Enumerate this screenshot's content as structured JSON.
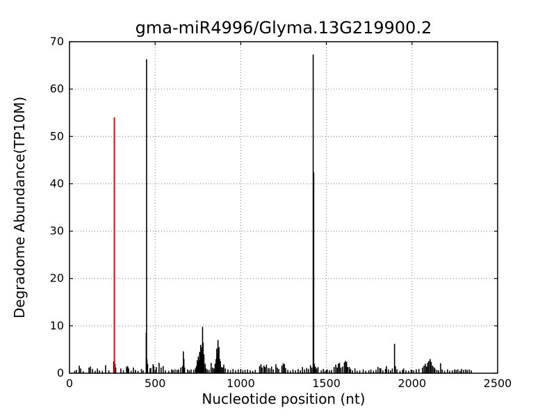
{
  "chart_data": {
    "type": "bar",
    "title": "gma-miR4996/Glyma.13G219900.2",
    "xlabel": "Nucleotide position (nt)",
    "ylabel": "Degradome Abundance(TP10M)",
    "xlim": [
      0,
      2500
    ],
    "ylim": [
      0,
      70
    ],
    "xticks": [
      0,
      500,
      1000,
      1500,
      2000,
      2500
    ],
    "yticks": [
      0,
      10,
      20,
      30,
      40,
      50,
      60,
      70
    ],
    "grid": "dotted",
    "legend": "none",
    "colors": {
      "bar": "#000000",
      "highlight": "#ee0000",
      "axis": "#000000",
      "grid": "#777777",
      "background": "#ffffff"
    },
    "highlight_bar": {
      "x": 262,
      "value": 54.0
    },
    "bars": [
      [
        30,
        0.5
      ],
      [
        40,
        0.7
      ],
      [
        57,
        1.6
      ],
      [
        65,
        1.0
      ],
      [
        80,
        0.4
      ],
      [
        114,
        1.2
      ],
      [
        122,
        1.4
      ],
      [
        134,
        0.9
      ],
      [
        150,
        0.5
      ],
      [
        163,
        1.0
      ],
      [
        175,
        0.6
      ],
      [
        192,
        0.5
      ],
      [
        211,
        1.7
      ],
      [
        230,
        0.6
      ],
      [
        258,
        2.5
      ],
      [
        266,
        2.0
      ],
      [
        270,
        1.2
      ],
      [
        300,
        1.0
      ],
      [
        315,
        0.6
      ],
      [
        333,
        1.4
      ],
      [
        340,
        1.5
      ],
      [
        345,
        1.0
      ],
      [
        360,
        0.5
      ],
      [
        373,
        1.2
      ],
      [
        385,
        0.7
      ],
      [
        400,
        0.5
      ],
      [
        420,
        0.9
      ],
      [
        430,
        0.6
      ],
      [
        448,
        8.5
      ],
      [
        450,
        66.3
      ],
      [
        452,
        3.0
      ],
      [
        456,
        2.0
      ],
      [
        470,
        1.0
      ],
      [
        475,
        1.1
      ],
      [
        488,
        1.9
      ],
      [
        492,
        1.5
      ],
      [
        507,
        1.3
      ],
      [
        523,
        2.2
      ],
      [
        535,
        1.2
      ],
      [
        547,
        1.5
      ],
      [
        560,
        0.6
      ],
      [
        580,
        0.5
      ],
      [
        596,
        0.8
      ],
      [
        605,
        0.7
      ],
      [
        616,
        0.8
      ],
      [
        628,
        0.7
      ],
      [
        637,
        0.8
      ],
      [
        650,
        1.2
      ],
      [
        660,
        1.5
      ],
      [
        665,
        4.6
      ],
      [
        668,
        3.0
      ],
      [
        672,
        1.2
      ],
      [
        690,
        0.8
      ],
      [
        700,
        0.6
      ],
      [
        710,
        0.8
      ],
      [
        725,
        0.7
      ],
      [
        735,
        1.0
      ],
      [
        741,
        1.5
      ],
      [
        746,
        2.7
      ],
      [
        752,
        3.5
      ],
      [
        757,
        2.8
      ],
      [
        760,
        4.5
      ],
      [
        766,
        6.0
      ],
      [
        770,
        4.2
      ],
      [
        773,
        5.5
      ],
      [
        777,
        9.8
      ],
      [
        780,
        6.5
      ],
      [
        785,
        4.0
      ],
      [
        792,
        2.0
      ],
      [
        797,
        1.0
      ],
      [
        805,
        0.8
      ],
      [
        815,
        0.7
      ],
      [
        827,
        2.2
      ],
      [
        835,
        1.2
      ],
      [
        843,
        1.0
      ],
      [
        850,
        2.0
      ],
      [
        856,
        3.0
      ],
      [
        860,
        5.2
      ],
      [
        864,
        4.0
      ],
      [
        867,
        7.0
      ],
      [
        873,
        5.5
      ],
      [
        877,
        3.0
      ],
      [
        881,
        2.5
      ],
      [
        888,
        1.3
      ],
      [
        895,
        1.2
      ],
      [
        901,
        1.8
      ],
      [
        910,
        1.0
      ],
      [
        925,
        0.8
      ],
      [
        940,
        0.6
      ],
      [
        955,
        0.9
      ],
      [
        970,
        0.6
      ],
      [
        985,
        0.8
      ],
      [
        1000,
        0.9
      ],
      [
        1012,
        0.6
      ],
      [
        1025,
        0.7
      ],
      [
        1040,
        0.8
      ],
      [
        1055,
        0.6
      ],
      [
        1070,
        0.5
      ],
      [
        1085,
        0.7
      ],
      [
        1110,
        1.5
      ],
      [
        1118,
        1.9
      ],
      [
        1125,
        1.2
      ],
      [
        1135,
        1.6
      ],
      [
        1142,
        1.3
      ],
      [
        1150,
        1.8
      ],
      [
        1160,
        1.1
      ],
      [
        1170,
        1.0
      ],
      [
        1180,
        1.4
      ],
      [
        1190,
        0.8
      ],
      [
        1205,
        1.9
      ],
      [
        1213,
        1.2
      ],
      [
        1222,
        0.9
      ],
      [
        1240,
        1.6
      ],
      [
        1248,
        2.1
      ],
      [
        1255,
        1.9
      ],
      [
        1262,
        1.1
      ],
      [
        1275,
        0.7
      ],
      [
        1290,
        0.5
      ],
      [
        1305,
        0.8
      ],
      [
        1320,
        0.6
      ],
      [
        1335,
        0.9
      ],
      [
        1348,
        0.6
      ],
      [
        1360,
        1.3
      ],
      [
        1372,
        0.8
      ],
      [
        1385,
        1.1
      ],
      [
        1395,
        0.9
      ],
      [
        1407,
        1.7
      ],
      [
        1415,
        1.2
      ],
      [
        1423,
        67.3
      ],
      [
        1426,
        42.4
      ],
      [
        1430,
        2.0
      ],
      [
        1436,
        1.4
      ],
      [
        1443,
        1.0
      ],
      [
        1451,
        1.3
      ],
      [
        1470,
        0.6
      ],
      [
        1482,
        0.9
      ],
      [
        1492,
        0.5
      ],
      [
        1505,
        0.8
      ],
      [
        1518,
        0.6
      ],
      [
        1530,
        0.7
      ],
      [
        1545,
        1.3
      ],
      [
        1555,
        1.8
      ],
      [
        1563,
        1.2
      ],
      [
        1570,
        2.0
      ],
      [
        1577,
        2.2
      ],
      [
        1585,
        1.2
      ],
      [
        1595,
        1.4
      ],
      [
        1605,
        2.3
      ],
      [
        1612,
        2.6
      ],
      [
        1618,
        2.4
      ],
      [
        1625,
        1.3
      ],
      [
        1634,
        1.3
      ],
      [
        1641,
        0.9
      ],
      [
        1652,
        0.6
      ],
      [
        1667,
        1.0
      ],
      [
        1680,
        0.5
      ],
      [
        1695,
        0.6
      ],
      [
        1715,
        0.8
      ],
      [
        1730,
        0.5
      ],
      [
        1748,
        0.6
      ],
      [
        1760,
        0.8
      ],
      [
        1775,
        0.5
      ],
      [
        1790,
        0.7
      ],
      [
        1801,
        1.3
      ],
      [
        1812,
        1.1
      ],
      [
        1818,
        1.0
      ],
      [
        1830,
        0.6
      ],
      [
        1845,
        0.9
      ],
      [
        1851,
        1.5
      ],
      [
        1862,
        0.8
      ],
      [
        1875,
        0.6
      ],
      [
        1885,
        1.0
      ],
      [
        1898,
        6.2
      ],
      [
        1903,
        1.5
      ],
      [
        1912,
        0.8
      ],
      [
        1930,
        0.5
      ],
      [
        1945,
        0.7
      ],
      [
        1951,
        1.0
      ],
      [
        1965,
        0.6
      ],
      [
        1980,
        0.5
      ],
      [
        1995,
        0.7
      ],
      [
        2010,
        0.6
      ],
      [
        2025,
        0.8
      ],
      [
        2040,
        0.9
      ],
      [
        2061,
        1.2
      ],
      [
        2070,
        1.6
      ],
      [
        2078,
        2.0
      ],
      [
        2085,
        1.4
      ],
      [
        2092,
        2.2
      ],
      [
        2098,
        2.6
      ],
      [
        2106,
        3.0
      ],
      [
        2112,
        2.4
      ],
      [
        2120,
        1.6
      ],
      [
        2128,
        1.3
      ],
      [
        2134,
        1.0
      ],
      [
        2145,
        0.7
      ],
      [
        2155,
        0.6
      ],
      [
        2167,
        2.1
      ],
      [
        2176,
        0.8
      ],
      [
        2190,
        0.5
      ],
      [
        2207,
        0.8
      ],
      [
        2220,
        0.5
      ],
      [
        2235,
        0.6
      ],
      [
        2248,
        0.8
      ],
      [
        2258,
        0.7
      ],
      [
        2268,
        0.8
      ],
      [
        2280,
        0.5
      ],
      [
        2289,
        0.9
      ],
      [
        2300,
        0.7
      ],
      [
        2312,
        0.8
      ],
      [
        2322,
        0.7
      ],
      [
        2334,
        0.8
      ],
      [
        2346,
        0.6
      ]
    ]
  }
}
